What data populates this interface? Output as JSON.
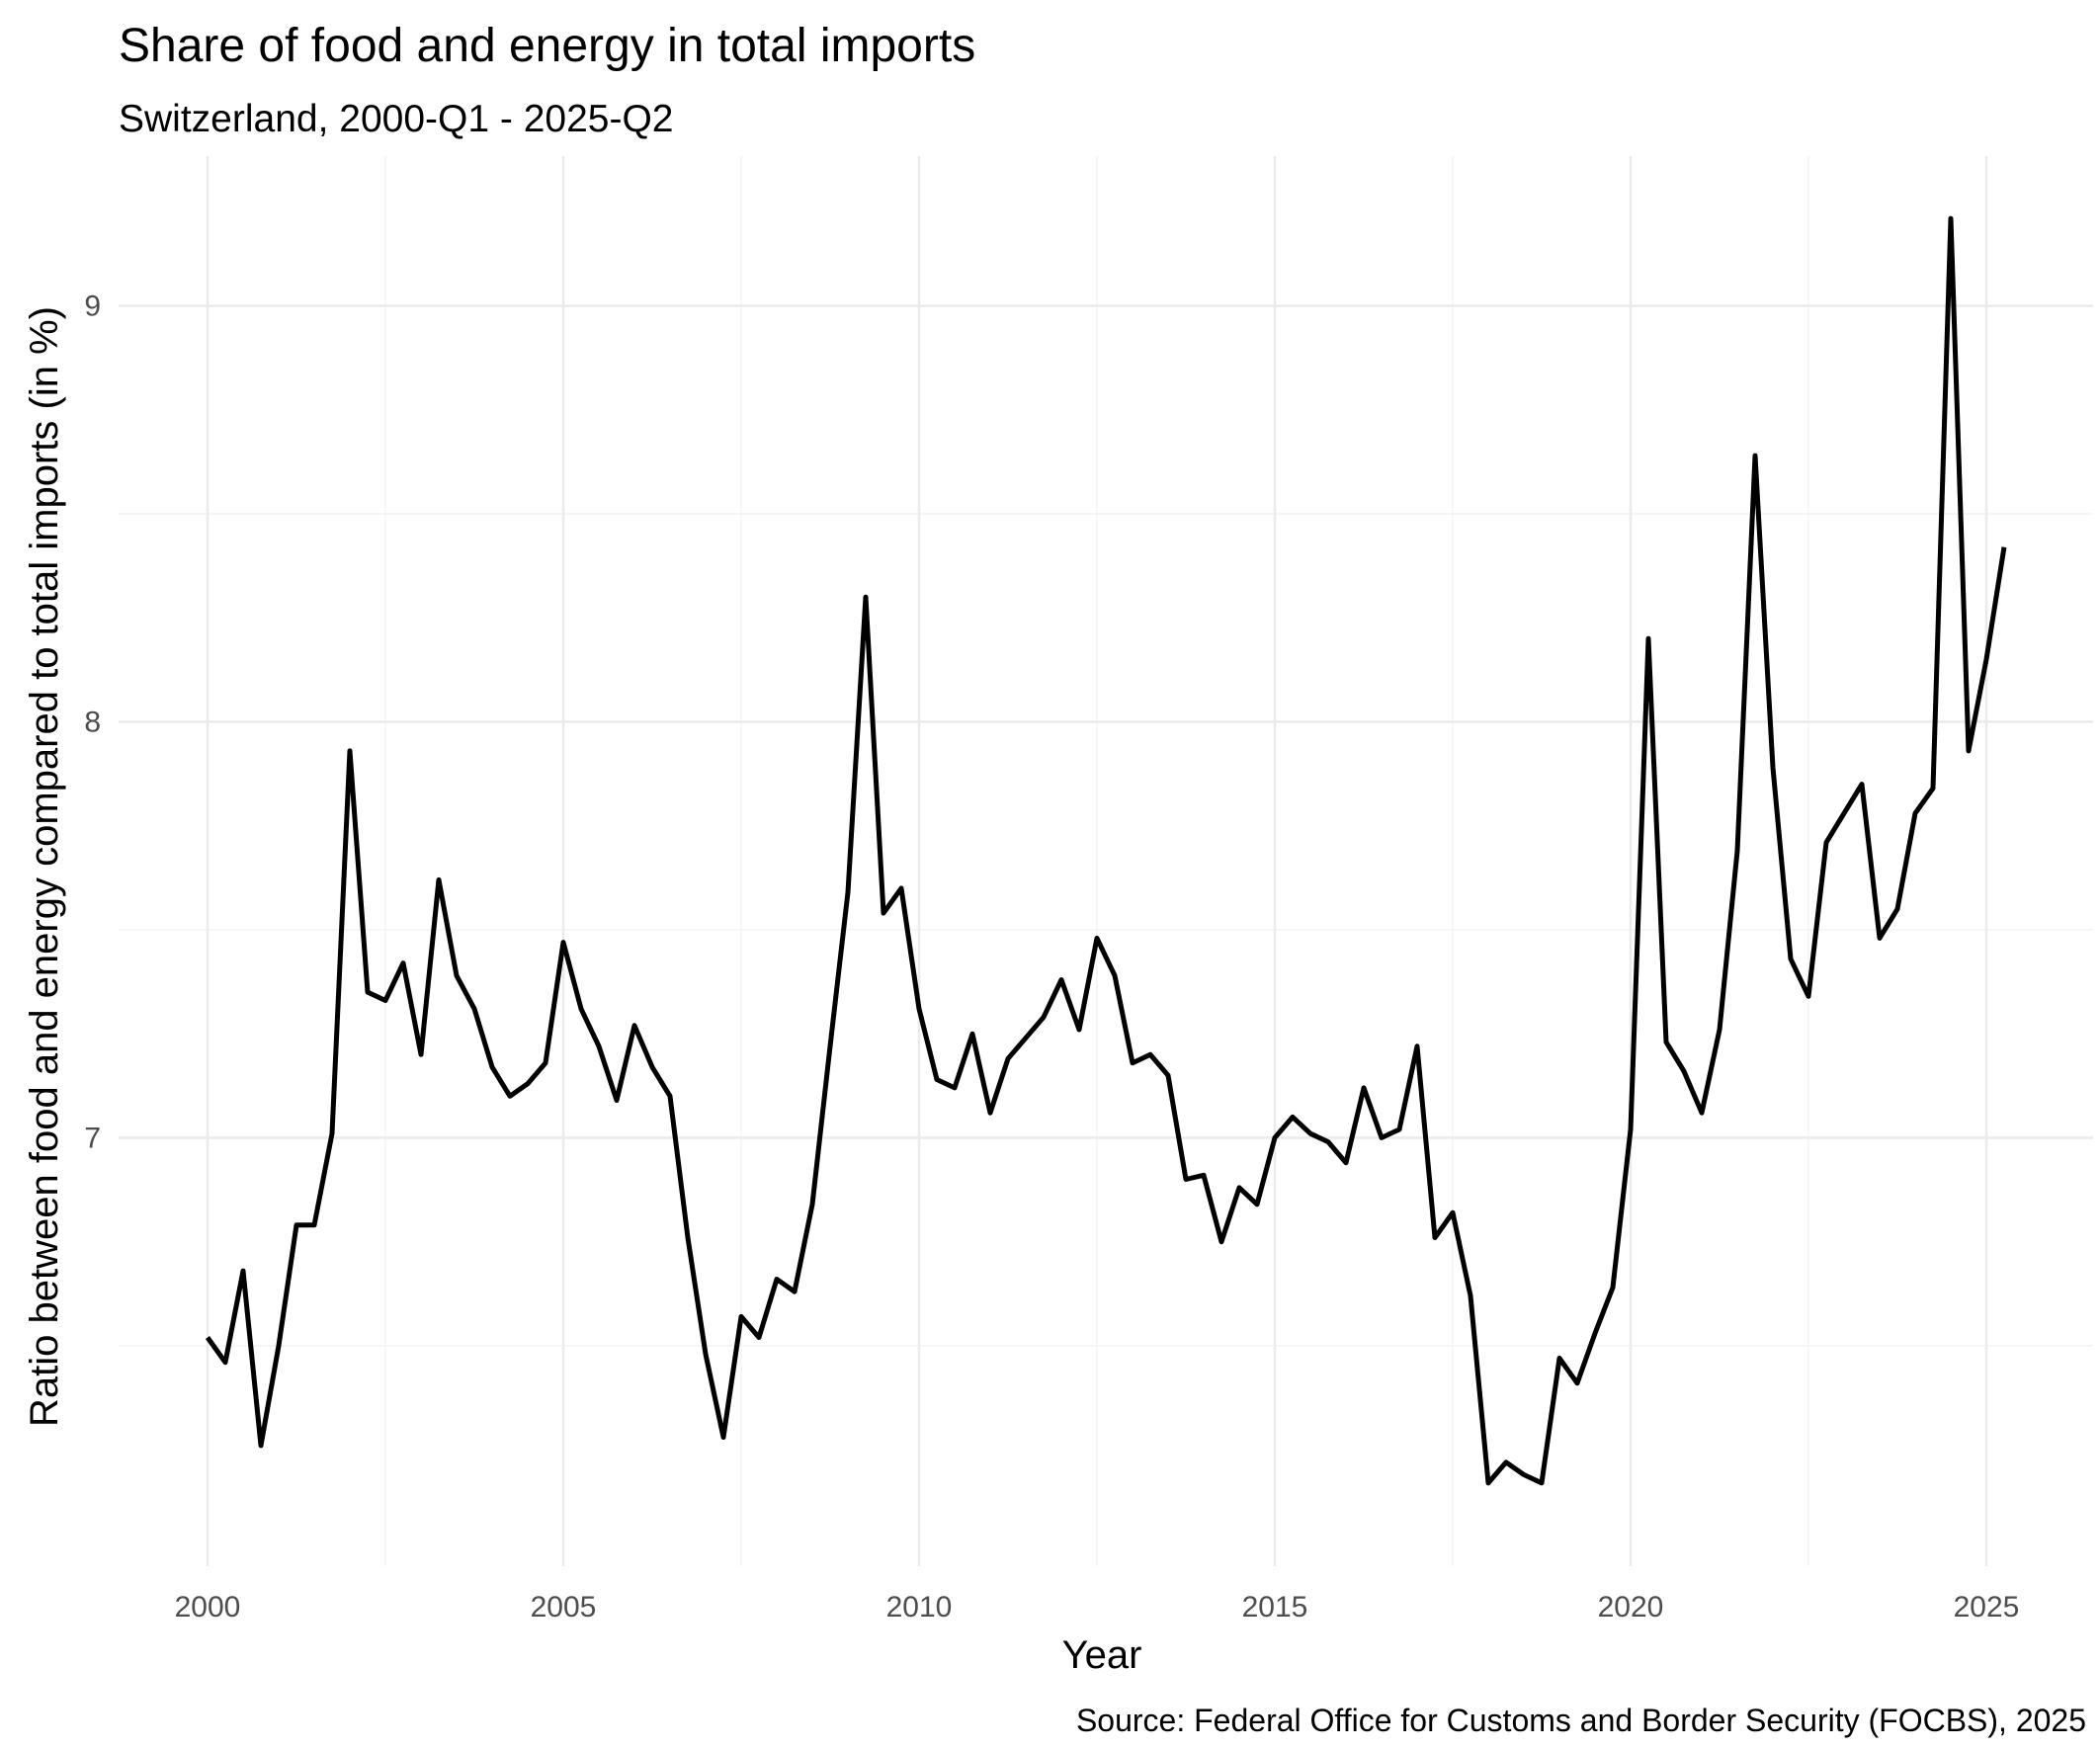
{
  "chart_data": {
    "type": "line",
    "title": "Share of food and energy in total imports",
    "subtitle": "Switzerland, 2000-Q1 - 2025-Q2",
    "xlabel": "Year",
    "ylabel": "Ratio between food and energy compared to total imports (in %)",
    "caption": "Source: Federal Office for Customs and Border Security (FOCBS), 2025",
    "xlim": [
      1998.75,
      2026.5
    ],
    "ylim": [
      5.97,
      9.36
    ],
    "x_ticks": [
      2000,
      2005,
      2010,
      2015,
      2020,
      2025
    ],
    "x_tick_labels": [
      "2000",
      "2005",
      "2010",
      "2015",
      "2020",
      "2025"
    ],
    "y_ticks": [
      7,
      8,
      9
    ],
    "y_tick_labels": [
      "7",
      "8",
      "9"
    ],
    "grid": true,
    "legend": "none",
    "line_color": "#000000",
    "x_start": "2000-Q1",
    "x_end": "2025-Q2",
    "values": [
      6.52,
      6.46,
      6.68,
      6.26,
      6.5,
      6.79,
      6.79,
      7.01,
      7.93,
      7.35,
      7.33,
      7.42,
      7.2,
      7.62,
      7.39,
      7.31,
      7.17,
      7.1,
      7.13,
      7.18,
      7.47,
      7.31,
      7.22,
      7.09,
      7.27,
      7.17,
      7.1,
      6.76,
      6.48,
      6.28,
      6.57,
      6.52,
      6.66,
      6.63,
      6.84,
      7.22,
      7.59,
      8.3,
      7.54,
      7.6,
      7.31,
      7.14,
      7.12,
      7.25,
      7.06,
      7.19,
      7.24,
      7.29,
      7.38,
      7.26,
      7.48,
      7.39,
      7.18,
      7.2,
      7.15,
      6.9,
      6.91,
      6.75,
      6.88,
      6.84,
      7.0,
      7.05,
      7.01,
      6.99,
      6.94,
      7.12,
      7.0,
      7.02,
      7.22,
      6.76,
      6.82,
      6.62,
      6.17,
      6.22,
      6.19,
      6.17,
      6.47,
      6.41,
      6.53,
      6.64,
      7.02,
      8.2,
      7.23,
      7.16,
      7.06,
      7.26,
      7.69,
      8.64,
      7.89,
      7.43,
      7.34,
      7.71,
      7.78,
      7.85,
      7.48,
      7.55,
      7.78,
      7.84,
      9.21,
      7.93,
      8.15,
      8.42
    ]
  }
}
